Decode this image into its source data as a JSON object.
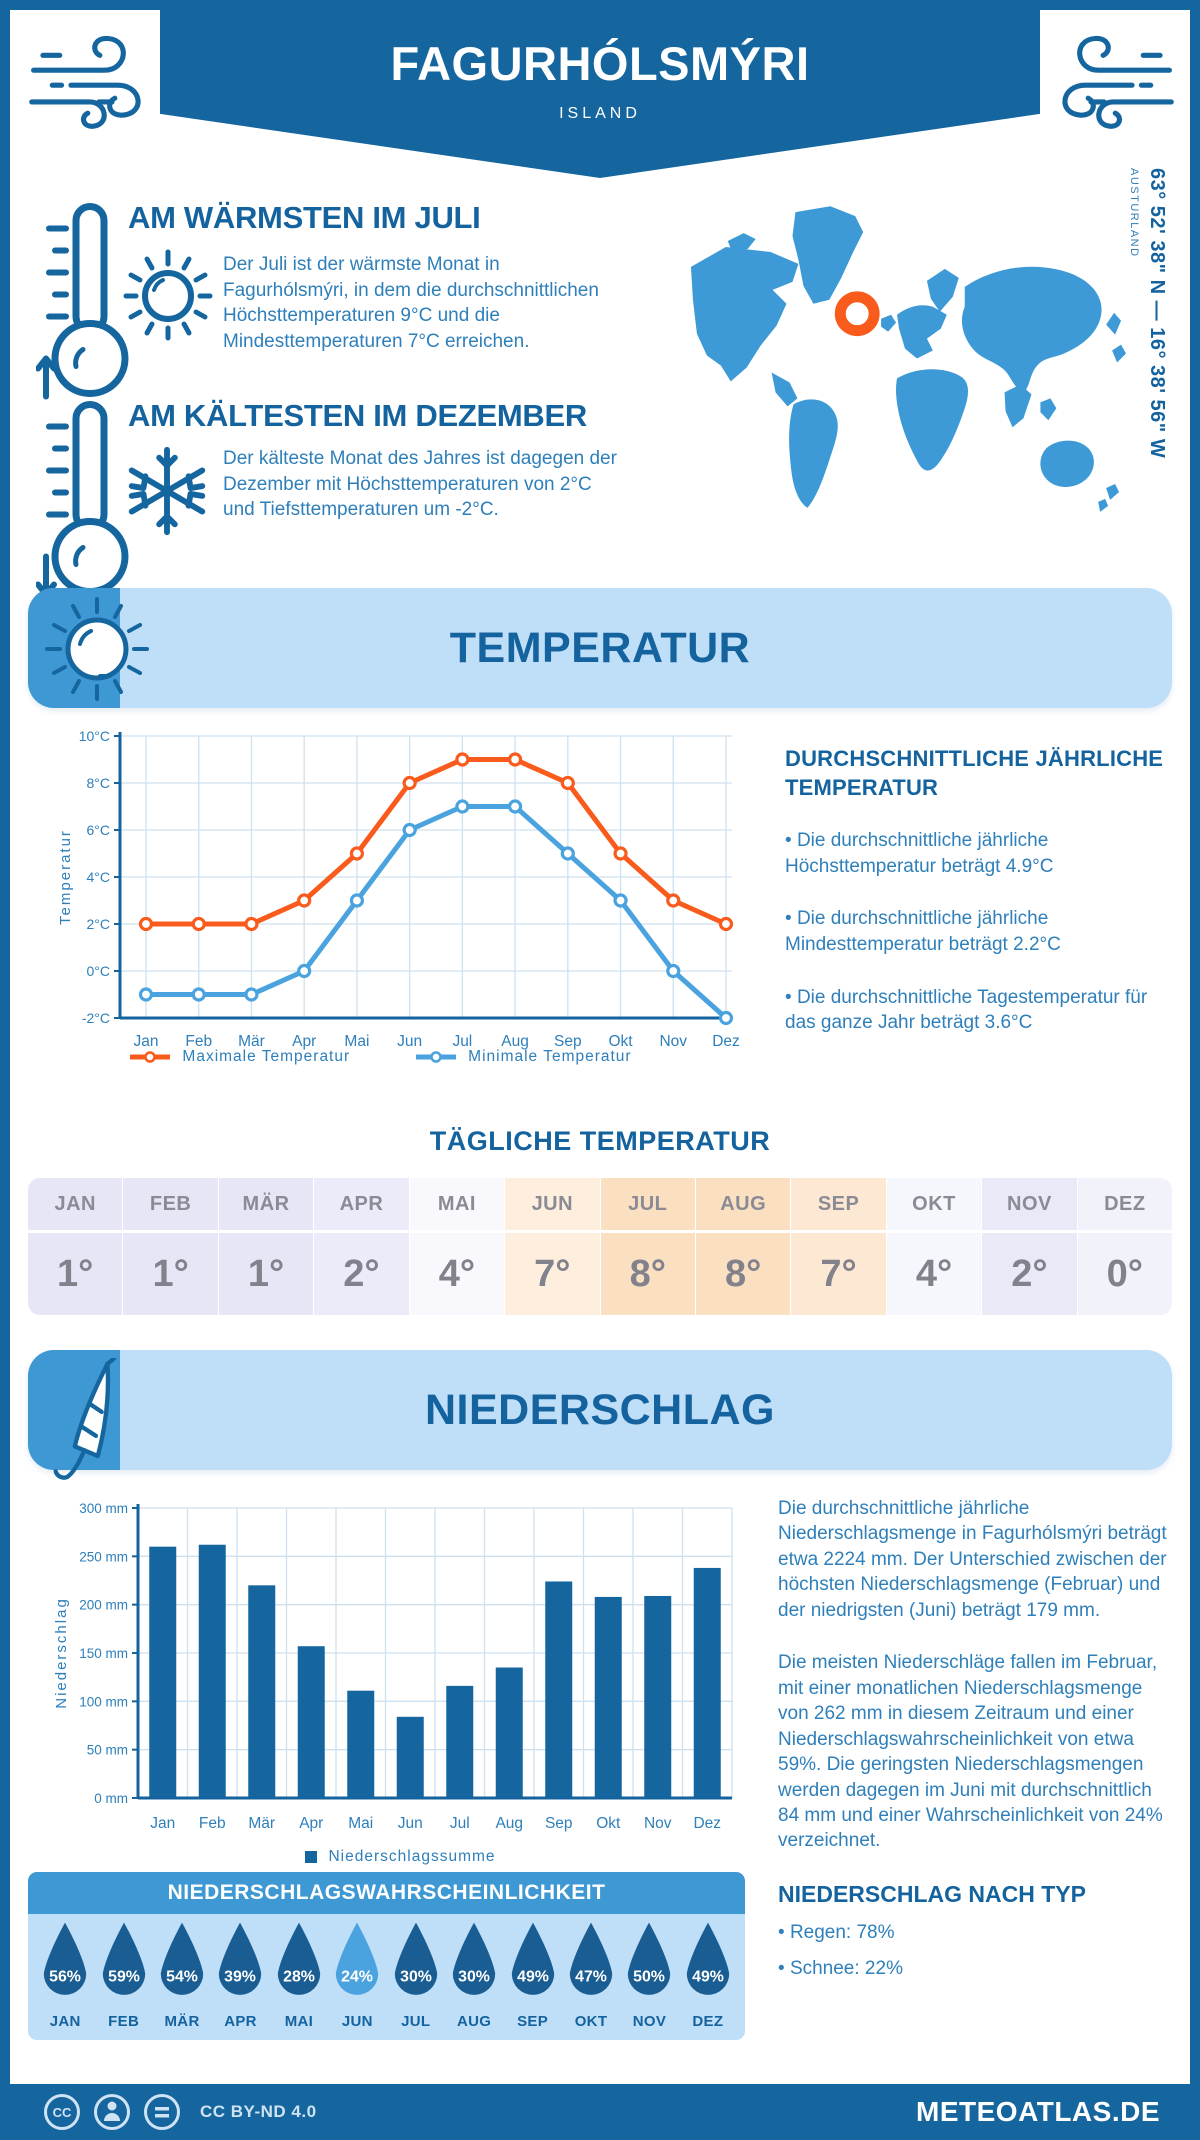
{
  "page": {
    "title": "FAGURHÓLSMÝRI",
    "subtitle": "ISLAND",
    "coordinates": "63° 52' 38\" N — 16° 38' 56\" W",
    "region": "AUSTURLAND"
  },
  "colors": {
    "primary": "#15669f",
    "heading": "#14639e",
    "body_text": "#2e7fba",
    "light_banner": "#bfdef8",
    "icon_blue": "#3e98d3",
    "map_blue": "#3d9ad6",
    "marker_orange": "#f95b1d"
  },
  "highlights": {
    "warm": {
      "title": "AM WÄRMSTEN IM JULI",
      "text": "Der Juli ist der wärmste Monat in Fagurhólsmýri, in dem die durchschnittlichen Höchsttemperaturen 9°C und die Mindesttemperaturen 7°C erreichen."
    },
    "cold": {
      "title": "AM KÄLTESTEN IM DEZEMBER",
      "text": "Der kälteste Monat des Jahres ist dagegen der Dezember mit Höchsttemperaturen von 2°C und Tiefsttemperaturen um -2°C."
    }
  },
  "temperature_section": {
    "banner": "TEMPERATUR",
    "annual": {
      "heading": "DURCHSCHNITTLICHE JÄHRLICHE TEMPERATUR",
      "bullets": [
        "Die durchschnittliche jährliche Höchsttemperatur beträgt 4.9°C",
        "Die durchschnittliche jährliche Mindesttemperatur beträgt 2.2°C",
        "Die durchschnittliche Tagestemperatur für das ganze Jahr beträgt 3.6°C"
      ]
    },
    "daily": {
      "heading": "TÄGLICHE TEMPERATUR",
      "months": [
        "JAN",
        "FEB",
        "MÄR",
        "APR",
        "MAI",
        "JUN",
        "JUL",
        "AUG",
        "SEP",
        "OKT",
        "NOV",
        "DEZ"
      ],
      "values": [
        "1°",
        "1°",
        "1°",
        "2°",
        "4°",
        "7°",
        "8°",
        "8°",
        "7°",
        "4°",
        "2°",
        "0°"
      ],
      "cell_colors": [
        "#e6e6f7",
        "#e6e6f7",
        "#e6e6f7",
        "#ebebfa",
        "#f8f8fd",
        "#fdeedd",
        "#fadfc1",
        "#fadfc1",
        "#fde9d3",
        "#f6f7fc",
        "#e9e9f8",
        "#f2f2fa"
      ]
    }
  },
  "precipitation_section": {
    "banner": "NIEDERSCHLAG",
    "paragraphs": [
      "Die durchschnittliche jährliche Niederschlagsmenge in Fagurhólsmýri beträgt etwa 2224 mm. Der Unterschied zwischen der höchsten Niederschlagsmenge (Februar) und der niedrigsten (Juni) beträgt 179 mm.",
      "Die meisten Niederschläge fallen im Februar, mit einer monatlichen Niederschlagsmenge von 262 mm in diesem Zeitraum und einer Niederschlagswahrscheinlichkeit von etwa 59%. Die geringsten Niederschlagsmengen werden dagegen im Juni mit durchschnittlich 84 mm und einer Wahrscheinlichkeit von 24% verzeichnet."
    ],
    "by_type": {
      "heading": "NIEDERSCHLAG NACH TYP",
      "bullets": [
        "Regen: 78%",
        "Schnee: 22%"
      ]
    },
    "probability": {
      "heading": "NIEDERSCHLAGSWAHRSCHEINLICHKEIT",
      "months": [
        "JAN",
        "FEB",
        "MÄR",
        "APR",
        "MAI",
        "JUN",
        "JUL",
        "AUG",
        "SEP",
        "OKT",
        "NOV",
        "DEZ"
      ],
      "values": [
        "56%",
        "59%",
        "54%",
        "39%",
        "28%",
        "24%",
        "30%",
        "30%",
        "49%",
        "47%",
        "50%",
        "49%"
      ],
      "drop_color": "#1a5d92",
      "highlight_color": "#4aa3df",
      "highlight_index": 5
    }
  },
  "chart_data": [
    {
      "type": "line",
      "title": "Monatliche Temperatur",
      "x": [
        "Jan",
        "Feb",
        "Mär",
        "Apr",
        "Mai",
        "Jun",
        "Jul",
        "Aug",
        "Sep",
        "Okt",
        "Nov",
        "Dez"
      ],
      "ylabel": "Temperatur",
      "yunit": "°C",
      "ylim": [
        -2,
        10
      ],
      "ytick_step": 2,
      "grid": true,
      "legend_position": "bottom",
      "series": [
        {
          "name": "Maximale Temperatur",
          "color": "#f95b1d",
          "values": [
            2,
            2,
            2,
            3,
            5,
            8,
            9,
            9,
            8,
            5,
            3,
            2
          ]
        },
        {
          "name": "Minimale Temperatur",
          "color": "#4aa3df",
          "values": [
            -1,
            -1,
            -1,
            0,
            3,
            6,
            7,
            7,
            5,
            3,
            0,
            -2
          ]
        }
      ]
    },
    {
      "type": "bar",
      "title": "Monatlicher Niederschlag",
      "x": [
        "Jan",
        "Feb",
        "Mär",
        "Apr",
        "Mai",
        "Jun",
        "Jul",
        "Aug",
        "Sep",
        "Okt",
        "Nov",
        "Dez"
      ],
      "ylabel": "Niederschlag",
      "yunit": " mm",
      "ylim": [
        0,
        300
      ],
      "ytick_step": 50,
      "grid": true,
      "legend_position": "bottom",
      "series": [
        {
          "name": "Niederschlagssumme",
          "color": "#15669f",
          "values": [
            260,
            262,
            220,
            157,
            111,
            84,
            116,
            135,
            224,
            208,
            209,
            238
          ]
        }
      ]
    }
  ],
  "footer": {
    "license": "CC BY-ND 4.0",
    "site": "METEOATLAS.DE"
  }
}
